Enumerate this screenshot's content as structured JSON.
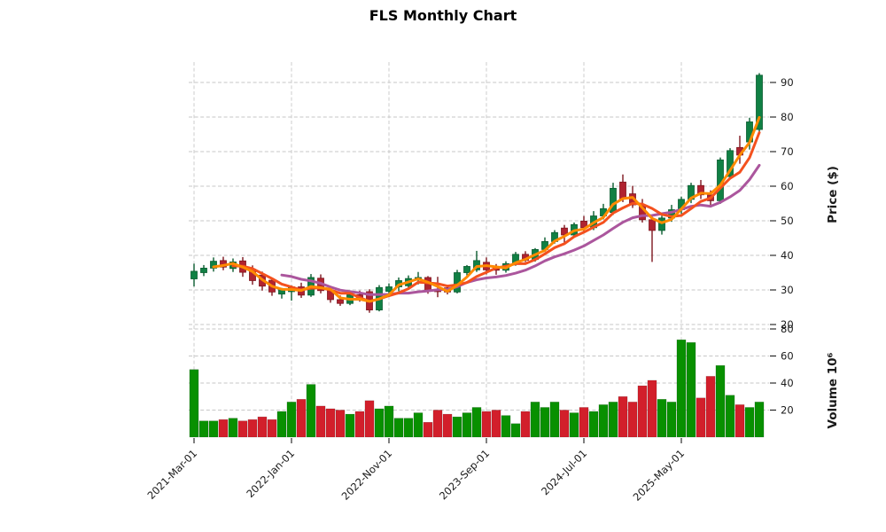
{
  "title": "FLS Monthly Chart",
  "chart_data": {
    "type": "candlestick",
    "title": "FLS Monthly Chart",
    "ylabel": "Price ($)",
    "volume_label": "Volume  10⁶",
    "grid": "dashed",
    "legend_position": "none",
    "price_axis_side": "right",
    "price_ticks": [
      20,
      30,
      40,
      50,
      60,
      70,
      80,
      90
    ],
    "price_range": [
      19,
      96
    ],
    "volume_ticks": [
      20,
      40,
      60,
      80
    ],
    "volume_range_millions": [
      0,
      86
    ],
    "x_ticks": [
      {
        "index": 0,
        "label": "2021-Mar-01"
      },
      {
        "index": 10,
        "label": "2022-Jan-01"
      },
      {
        "index": 20,
        "label": "2022-Nov-01"
      },
      {
        "index": 30,
        "label": "2023-Sep-01"
      },
      {
        "index": 40,
        "label": "2024-Jul-01"
      },
      {
        "index": 50,
        "label": "2025-May-01"
      }
    ],
    "moving_averages": [
      {
        "window": 3,
        "color": "#ff8a00"
      },
      {
        "window": 5,
        "color": "#f4511e"
      },
      {
        "window": 10,
        "color": "#ab569d"
      }
    ],
    "colors": {
      "up_body": "#108044",
      "up_edge": "#0a5c30",
      "down_body": "#b02330",
      "down_edge": "#7e161e",
      "vol_up": "#089000",
      "vol_down": "#d21f2b",
      "grid": "#c7c7c7",
      "text": "#1a1a1a",
      "background": "#ffffff"
    },
    "candles": [
      {
        "d": "2021-03",
        "o": 33.2,
        "h": 37.6,
        "l": 31.0,
        "c": 35.4,
        "v": 50
      },
      {
        "d": "2021-04",
        "o": 35.0,
        "h": 37.2,
        "l": 34.0,
        "c": 36.3,
        "v": 12
      },
      {
        "d": "2021-05",
        "o": 36.3,
        "h": 39.4,
        "l": 35.3,
        "c": 38.3,
        "v": 12
      },
      {
        "d": "2021-06",
        "o": 38.5,
        "h": 39.6,
        "l": 35.7,
        "c": 36.6,
        "v": 13
      },
      {
        "d": "2021-07",
        "o": 36.2,
        "h": 39.1,
        "l": 35.2,
        "c": 38.1,
        "v": 14
      },
      {
        "d": "2021-08",
        "o": 38.4,
        "h": 39.5,
        "l": 33.8,
        "c": 35.1,
        "v": 12
      },
      {
        "d": "2021-09",
        "o": 36.0,
        "h": 37.1,
        "l": 31.5,
        "c": 32.7,
        "v": 13
      },
      {
        "d": "2021-10",
        "o": 34.3,
        "h": 35.3,
        "l": 29.8,
        "c": 31.1,
        "v": 15
      },
      {
        "d": "2021-11",
        "o": 32.8,
        "h": 33.5,
        "l": 28.3,
        "c": 29.4,
        "v": 13
      },
      {
        "d": "2021-12",
        "o": 28.8,
        "h": 30.6,
        "l": 27.5,
        "c": 30.1,
        "v": 19
      },
      {
        "d": "2022-01",
        "o": 29.5,
        "h": 31.3,
        "l": 26.9,
        "c": 30.9,
        "v": 26
      },
      {
        "d": "2022-02",
        "o": 30.9,
        "h": 32.1,
        "l": 27.7,
        "c": 28.5,
        "v": 28
      },
      {
        "d": "2022-03",
        "o": 28.5,
        "h": 34.6,
        "l": 28.0,
        "c": 33.6,
        "v": 39
      },
      {
        "d": "2022-04",
        "o": 33.4,
        "h": 34.5,
        "l": 29.0,
        "c": 29.8,
        "v": 23
      },
      {
        "d": "2022-05",
        "o": 29.8,
        "h": 30.8,
        "l": 26.3,
        "c": 27.2,
        "v": 21
      },
      {
        "d": "2022-06",
        "o": 27.2,
        "h": 28.4,
        "l": 25.4,
        "c": 26.1,
        "v": 20
      },
      {
        "d": "2022-07",
        "o": 26.1,
        "h": 29.2,
        "l": 25.6,
        "c": 28.6,
        "v": 17
      },
      {
        "d": "2022-08",
        "o": 28.6,
        "h": 29.8,
        "l": 26.6,
        "c": 27.3,
        "v": 19
      },
      {
        "d": "2022-09",
        "o": 29.5,
        "h": 30.2,
        "l": 23.4,
        "c": 24.2,
        "v": 27
      },
      {
        "d": "2022-10",
        "o": 24.2,
        "h": 31.4,
        "l": 23.8,
        "c": 30.7,
        "v": 21
      },
      {
        "d": "2022-11",
        "o": 29.6,
        "h": 31.9,
        "l": 28.4,
        "c": 30.9,
        "v": 23
      },
      {
        "d": "2022-12",
        "o": 30.9,
        "h": 33.6,
        "l": 29.6,
        "c": 32.7,
        "v": 14
      },
      {
        "d": "2023-01",
        "o": 31.2,
        "h": 34.2,
        "l": 30.6,
        "c": 33.3,
        "v": 14
      },
      {
        "d": "2023-02",
        "o": 33.3,
        "h": 35.2,
        "l": 31.6,
        "c": 33.6,
        "v": 18
      },
      {
        "d": "2023-03",
        "o": 33.6,
        "h": 34.0,
        "l": 28.9,
        "c": 29.8,
        "v": 11
      },
      {
        "d": "2023-04",
        "o": 29.8,
        "h": 33.8,
        "l": 27.9,
        "c": 29.6,
        "v": 20
      },
      {
        "d": "2023-05",
        "o": 30.6,
        "h": 31.5,
        "l": 28.7,
        "c": 29.4,
        "v": 17
      },
      {
        "d": "2023-06",
        "o": 29.4,
        "h": 35.8,
        "l": 29.0,
        "c": 35.0,
        "v": 15
      },
      {
        "d": "2023-07",
        "o": 35.0,
        "h": 37.2,
        "l": 34.2,
        "c": 36.8,
        "v": 18
      },
      {
        "d": "2023-08",
        "o": 35.8,
        "h": 41.3,
        "l": 35.2,
        "c": 38.5,
        "v": 22
      },
      {
        "d": "2023-09",
        "o": 38.0,
        "h": 39.4,
        "l": 34.5,
        "c": 35.8,
        "v": 19
      },
      {
        "d": "2023-10",
        "o": 36.5,
        "h": 37.5,
        "l": 34.4,
        "c": 35.7,
        "v": 20
      },
      {
        "d": "2023-11",
        "o": 35.7,
        "h": 38.3,
        "l": 35.0,
        "c": 37.6,
        "v": 16
      },
      {
        "d": "2023-12",
        "o": 37.6,
        "h": 41.0,
        "l": 37.0,
        "c": 40.3,
        "v": 10
      },
      {
        "d": "2024-01",
        "o": 40.3,
        "h": 41.2,
        "l": 38.1,
        "c": 38.6,
        "v": 19
      },
      {
        "d": "2024-02",
        "o": 38.8,
        "h": 42.1,
        "l": 38.2,
        "c": 41.7,
        "v": 26
      },
      {
        "d": "2024-03",
        "o": 41.7,
        "h": 45.2,
        "l": 41.0,
        "c": 44.0,
        "v": 22
      },
      {
        "d": "2024-04",
        "o": 44.0,
        "h": 47.3,
        "l": 43.4,
        "c": 46.6,
        "v": 26
      },
      {
        "d": "2024-05",
        "o": 47.9,
        "h": 48.8,
        "l": 43.5,
        "c": 45.9,
        "v": 20
      },
      {
        "d": "2024-06",
        "o": 45.9,
        "h": 49.5,
        "l": 45.2,
        "c": 48.9,
        "v": 18
      },
      {
        "d": "2024-07",
        "o": 49.9,
        "h": 51.4,
        "l": 46.8,
        "c": 48.0,
        "v": 22
      },
      {
        "d": "2024-08",
        "o": 48.0,
        "h": 52.8,
        "l": 47.3,
        "c": 51.4,
        "v": 19
      },
      {
        "d": "2024-09",
        "o": 51.4,
        "h": 54.9,
        "l": 50.4,
        "c": 53.5,
        "v": 24
      },
      {
        "d": "2024-10",
        "o": 52.4,
        "h": 61.0,
        "l": 51.7,
        "c": 59.4,
        "v": 26
      },
      {
        "d": "2024-11",
        "o": 61.2,
        "h": 63.4,
        "l": 55.4,
        "c": 56.3,
        "v": 30
      },
      {
        "d": "2024-12",
        "o": 57.8,
        "h": 60.1,
        "l": 53.7,
        "c": 54.6,
        "v": 26
      },
      {
        "d": "2025-01",
        "o": 54.6,
        "h": 56.3,
        "l": 49.5,
        "c": 50.3,
        "v": 38
      },
      {
        "d": "2025-02",
        "o": 50.3,
        "h": 51.3,
        "l": 38.1,
        "c": 47.2,
        "v": 42
      },
      {
        "d": "2025-03",
        "o": 47.2,
        "h": 51.5,
        "l": 46.0,
        "c": 50.8,
        "v": 28
      },
      {
        "d": "2025-04",
        "o": 50.8,
        "h": 54.6,
        "l": 49.7,
        "c": 53.2,
        "v": 26
      },
      {
        "d": "2025-05",
        "o": 53.2,
        "h": 57.0,
        "l": 52.0,
        "c": 56.2,
        "v": 72
      },
      {
        "d": "2025-06",
        "o": 56.2,
        "h": 61.0,
        "l": 55.1,
        "c": 60.2,
        "v": 70
      },
      {
        "d": "2025-07",
        "o": 60.2,
        "h": 61.8,
        "l": 56.3,
        "c": 57.5,
        "v": 29
      },
      {
        "d": "2025-08",
        "o": 57.5,
        "h": 58.8,
        "l": 54.6,
        "c": 55.8,
        "v": 45
      },
      {
        "d": "2025-09",
        "o": 55.8,
        "h": 68.3,
        "l": 54.9,
        "c": 67.6,
        "v": 53
      },
      {
        "d": "2025-10",
        "o": 62.8,
        "h": 71.0,
        "l": 62.0,
        "c": 70.3,
        "v": 31
      },
      {
        "d": "2025-11",
        "o": 71.2,
        "h": 74.6,
        "l": 66.5,
        "c": 69.0,
        "v": 24
      },
      {
        "d": "2025-12",
        "o": 72.8,
        "h": 79.8,
        "l": 70.6,
        "c": 78.6,
        "v": 22
      },
      {
        "d": "2026-01",
        "o": 76.4,
        "h": 92.7,
        "l": 75.5,
        "c": 92.1,
        "v": 26
      }
    ]
  }
}
